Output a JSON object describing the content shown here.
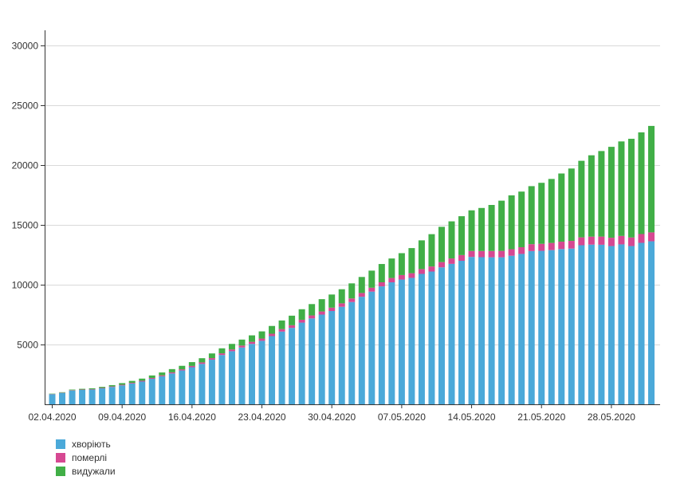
{
  "chart_data": {
    "type": "bar",
    "stacked": true,
    "ylim": [
      0,
      30000
    ],
    "yticks": [
      5000,
      10000,
      15000,
      20000,
      25000,
      30000
    ],
    "xtick_labels": [
      "02.04.2020",
      "09.04.2020",
      "16.04.2020",
      "23.04.2020",
      "30.04.2020",
      "07.05.2020",
      "14.05.2020",
      "21.05.2020",
      "28.05.2020"
    ],
    "grid": true,
    "legend_position": "bottom-left",
    "categories": [
      "02.04.2020",
      "03.04.2020",
      "04.04.2020",
      "05.04.2020",
      "06.04.2020",
      "07.04.2020",
      "08.04.2020",
      "09.04.2020",
      "10.04.2020",
      "11.04.2020",
      "12.04.2020",
      "13.04.2020",
      "14.04.2020",
      "15.04.2020",
      "16.04.2020",
      "17.04.2020",
      "18.04.2020",
      "19.04.2020",
      "20.04.2020",
      "21.04.2020",
      "22.04.2020",
      "23.04.2020",
      "24.04.2020",
      "25.04.2020",
      "26.04.2020",
      "27.04.2020",
      "28.04.2020",
      "29.04.2020",
      "30.04.2020",
      "01.05.2020",
      "02.05.2020",
      "03.05.2020",
      "04.05.2020",
      "05.05.2020",
      "06.05.2020",
      "07.05.2020",
      "08.05.2020",
      "09.05.2020",
      "10.05.2020",
      "11.05.2020",
      "12.05.2020",
      "13.05.2020",
      "14.05.2020",
      "15.05.2020",
      "16.05.2020",
      "17.05.2020",
      "18.05.2020",
      "19.05.2020",
      "20.05.2020",
      "21.05.2020",
      "22.05.2020",
      "23.05.2020",
      "24.05.2020",
      "25.05.2020",
      "26.05.2020",
      "27.05.2020",
      "28.05.2020",
      "29.05.2020",
      "30.05.2020",
      "31.05.2020",
      "01.06.2020"
    ],
    "series": [
      {
        "name": "хворіють",
        "color": "#4BA9D9",
        "values": [
          840,
          950,
          1150,
          1200,
          1230,
          1330,
          1450,
          1580,
          1740,
          1900,
          2130,
          2340,
          2580,
          2830,
          3100,
          3380,
          3730,
          4120,
          4440,
          4750,
          5050,
          5310,
          5700,
          6080,
          6390,
          6830,
          7180,
          7500,
          7800,
          8150,
          8550,
          8990,
          9420,
          9860,
          10200,
          10430,
          10570,
          10900,
          11100,
          11450,
          11740,
          12000,
          12320,
          12300,
          12290,
          12290,
          12420,
          12570,
          12810,
          12830,
          12890,
          12980,
          13020,
          13300,
          13350,
          13340,
          13230,
          13370,
          13230,
          13500,
          13630
        ]
      },
      {
        "name": "померлі",
        "color": "#D64892",
        "values": [
          20,
          23,
          27,
          30,
          34,
          37,
          45,
          52,
          57,
          69,
          73,
          83,
          93,
          98,
          108,
          125,
          133,
          141,
          151,
          161,
          174,
          187,
          201,
          209,
          220,
          239,
          250,
          261,
          279,
          291,
          301,
          316,
          327,
          340,
          361,
          376,
          391,
          408,
          425,
          439,
          456,
          476,
          497,
          514,
          527,
          535,
          548,
          564,
          579,
          588,
          601,
          618,
          644,
          658,
          669,
          684,
          696,
          708,
          718,
          733,
          743
        ]
      },
      {
        "name": "видужали",
        "color": "#41AF47",
        "values": [
          30,
          40,
          55,
          65,
          75,
          90,
          110,
          140,
          160,
          180,
          210,
          240,
          270,
          290,
          320,
          350,
          390,
          420,
          460,
          500,
          540,
          600,
          650,
          720,
          800,
          880,
          950,
          1030,
          1100,
          1180,
          1260,
          1340,
          1430,
          1530,
          1630,
          1830,
          2100,
          2400,
          2700,
          2950,
          3100,
          3250,
          3400,
          3600,
          3850,
          4200,
          4500,
          4650,
          4850,
          5100,
          5350,
          5700,
          6050,
          6400,
          6800,
          7150,
          7600,
          7900,
          8250,
          8500,
          8900
        ]
      }
    ]
  }
}
